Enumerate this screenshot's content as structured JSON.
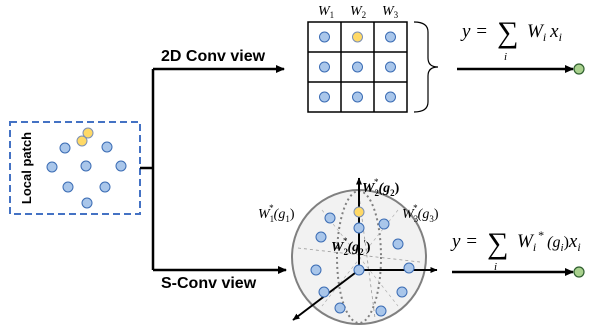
{
  "patch": {
    "label": "Local patch"
  },
  "views": {
    "conv2d": {
      "label": "2D Conv view"
    },
    "sconv": {
      "label": "S-Conv view"
    }
  },
  "weights_2d": {
    "w1": "W",
    "w1_sub": "1",
    "w2": "W",
    "w2_sub": "2",
    "w3": "W",
    "w3_sub": "3"
  },
  "formula_2d": {
    "lhs": "y =",
    "sum": "∑",
    "sum_index": "i",
    "term": "W",
    "term_sub": "i",
    "var": "x",
    "var_sub": "i"
  },
  "formula_s": {
    "lhs": "y =",
    "sum": "∑",
    "sum_index": "i",
    "term": "W",
    "term_sub": "i",
    "star": "*",
    "arg": "(g",
    "arg_sub": "i",
    "arg_close": ")",
    "var": "x",
    "var_sub": "i"
  },
  "sphere_labels": {
    "top": {
      "w": "W",
      "sub": "2",
      "star": "*",
      "arg": "(g",
      "arg_sub": "2",
      "close": ")"
    },
    "left": {
      "w": "W",
      "sub": "1",
      "star": "*",
      "arg": "(g",
      "arg_sub": "1",
      "close": ")"
    },
    "right": {
      "w": "W",
      "sub": "3",
      "star": "*",
      "arg": "(g",
      "arg_sub": "3",
      "close": ")"
    },
    "center": {
      "w": "W",
      "sub": "2",
      "star": "*",
      "arg": "(g",
      "arg_sub": "2",
      "prime": "′",
      "close": ")"
    }
  },
  "colors": {
    "point_fill": "#a9c6ea",
    "point_stroke": "#3b6cb4",
    "highlight_fill": "#ffd966",
    "highlight_stroke": "#7a8fb5",
    "patch_border": "#4472c4",
    "output_fill": "#a9d18e",
    "output_stroke": "#2f5f2f",
    "sphere_fill": "#f2f2f2",
    "sphere_stroke": "#808080"
  }
}
